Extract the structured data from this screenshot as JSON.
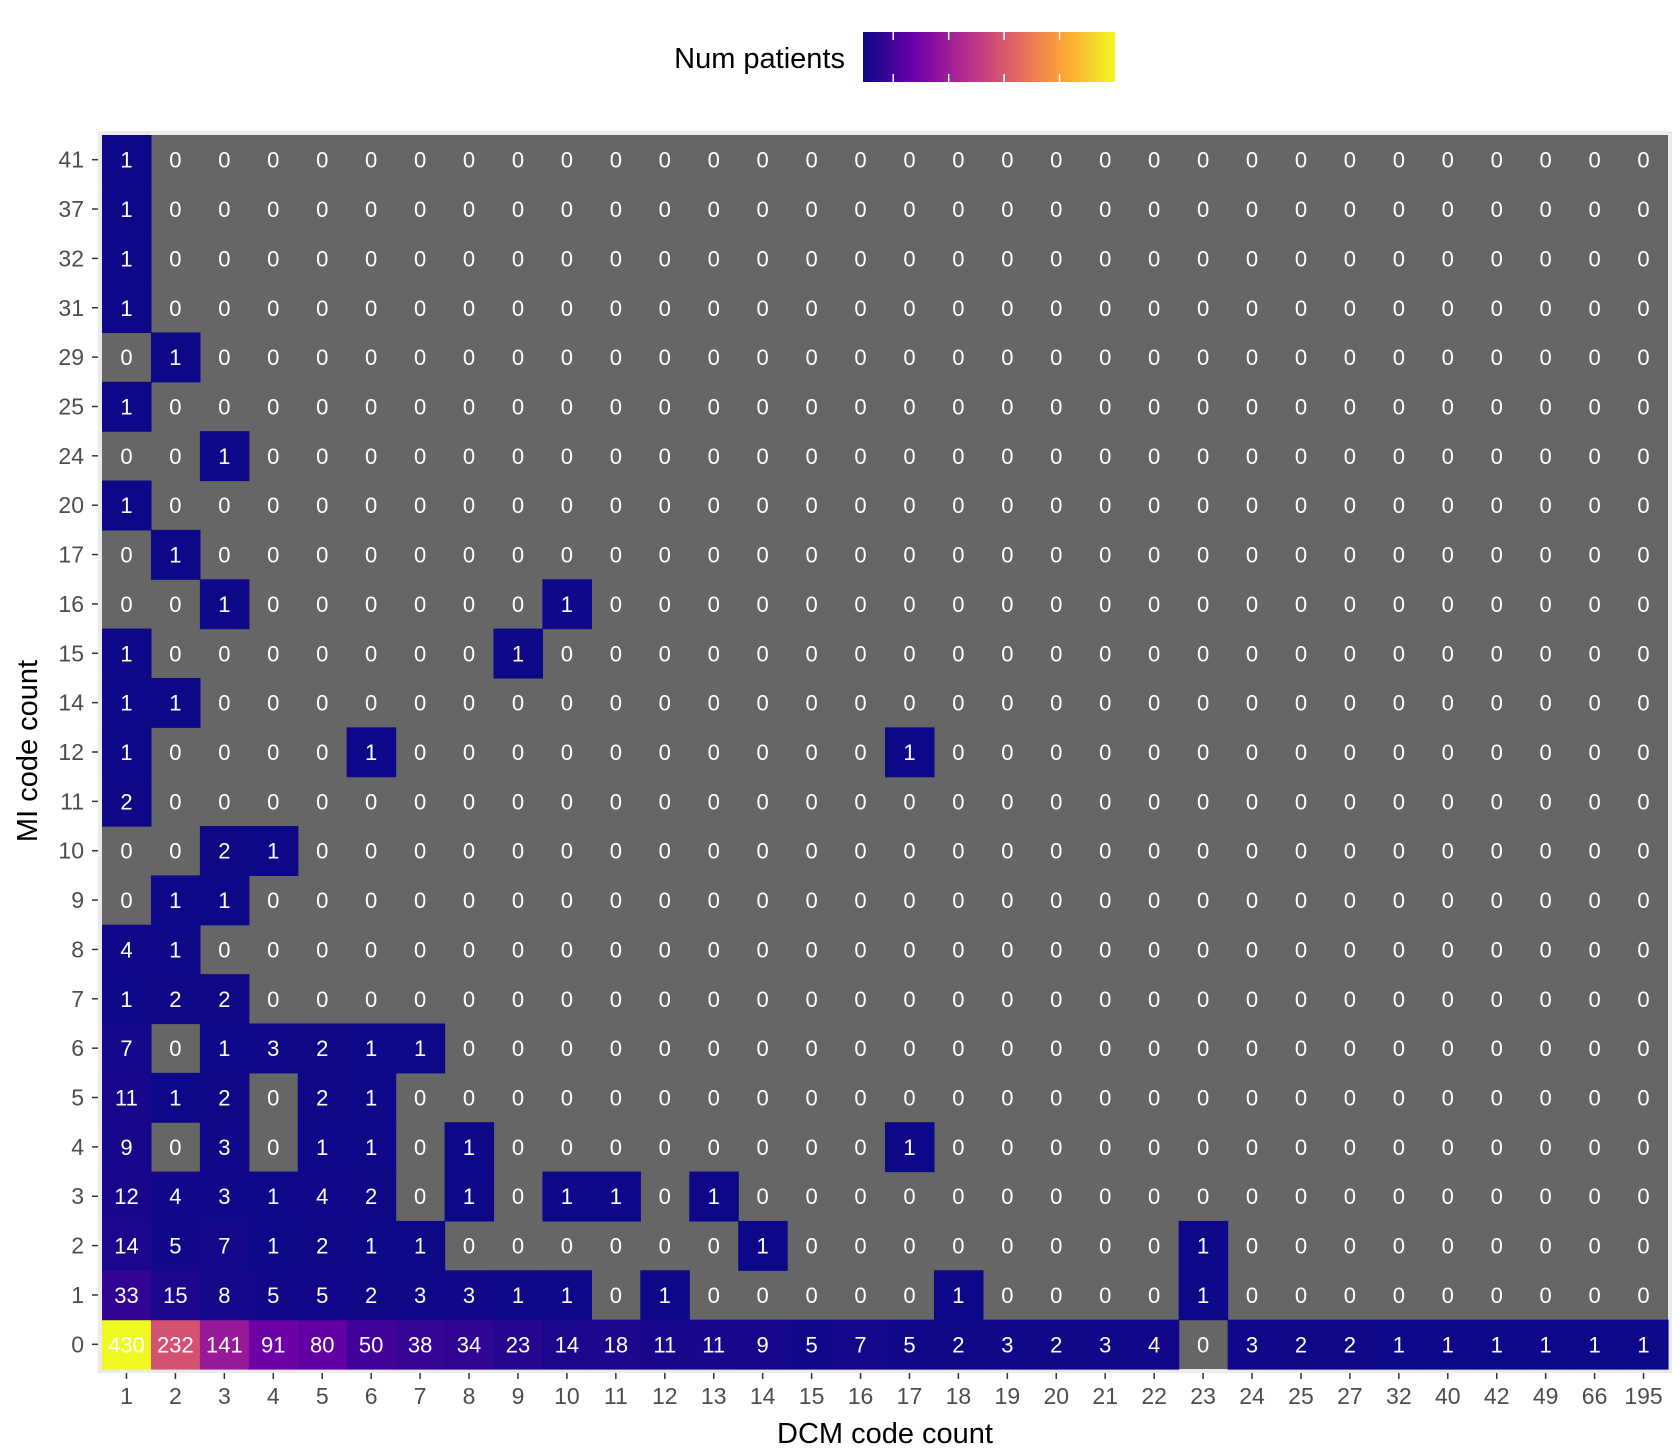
{
  "chart_data": {
    "type": "heatmap",
    "title": "",
    "xlabel": "DCM code count",
    "ylabel": "MI code count",
    "legend": {
      "title": "Num patients",
      "position": "top"
    },
    "colorscale": [
      "#0d0887",
      "#6a00a8",
      "#b12a90",
      "#e16462",
      "#fca636",
      "#f0f921"
    ],
    "zero_color": "#666666",
    "x": [
      "1",
      "2",
      "3",
      "4",
      "5",
      "6",
      "7",
      "8",
      "9",
      "10",
      "11",
      "12",
      "13",
      "14",
      "15",
      "16",
      "17",
      "18",
      "19",
      "20",
      "21",
      "22",
      "23",
      "24",
      "25",
      "27",
      "32",
      "40",
      "42",
      "49",
      "66",
      "195"
    ],
    "y": [
      "0",
      "1",
      "2",
      "3",
      "4",
      "5",
      "6",
      "7",
      "8",
      "9",
      "10",
      "11",
      "12",
      "14",
      "15",
      "16",
      "17",
      "20",
      "24",
      "25",
      "29",
      "31",
      "32",
      "37",
      "41"
    ],
    "values": [
      [
        430,
        232,
        141,
        91,
        80,
        50,
        38,
        34,
        23,
        14,
        18,
        11,
        11,
        9,
        5,
        7,
        5,
        2,
        3,
        2,
        3,
        4,
        0,
        3,
        2,
        2,
        1,
        1,
        1,
        1,
        1,
        1
      ],
      [
        33,
        15,
        8,
        5,
        5,
        2,
        3,
        3,
        1,
        1,
        0,
        1,
        0,
        0,
        0,
        0,
        0,
        1,
        0,
        0,
        0,
        0,
        1,
        0,
        0,
        0,
        0,
        0,
        0,
        0,
        0,
        0
      ],
      [
        14,
        5,
        7,
        1,
        2,
        1,
        1,
        0,
        0,
        0,
        0,
        0,
        0,
        1,
        0,
        0,
        0,
        0,
        0,
        0,
        0,
        0,
        1,
        0,
        0,
        0,
        0,
        0,
        0,
        0,
        0,
        0
      ],
      [
        12,
        4,
        3,
        1,
        4,
        2,
        0,
        1,
        0,
        1,
        1,
        0,
        1,
        0,
        0,
        0,
        0,
        0,
        0,
        0,
        0,
        0,
        0,
        0,
        0,
        0,
        0,
        0,
        0,
        0,
        0,
        0
      ],
      [
        9,
        0,
        3,
        0,
        1,
        1,
        0,
        1,
        0,
        0,
        0,
        0,
        0,
        0,
        0,
        0,
        1,
        0,
        0,
        0,
        0,
        0,
        0,
        0,
        0,
        0,
        0,
        0,
        0,
        0,
        0,
        0
      ],
      [
        11,
        1,
        2,
        0,
        2,
        1,
        0,
        0,
        0,
        0,
        0,
        0,
        0,
        0,
        0,
        0,
        0,
        0,
        0,
        0,
        0,
        0,
        0,
        0,
        0,
        0,
        0,
        0,
        0,
        0,
        0,
        0
      ],
      [
        7,
        0,
        1,
        3,
        2,
        1,
        1,
        0,
        0,
        0,
        0,
        0,
        0,
        0,
        0,
        0,
        0,
        0,
        0,
        0,
        0,
        0,
        0,
        0,
        0,
        0,
        0,
        0,
        0,
        0,
        0,
        0
      ],
      [
        1,
        2,
        2,
        0,
        0,
        0,
        0,
        0,
        0,
        0,
        0,
        0,
        0,
        0,
        0,
        0,
        0,
        0,
        0,
        0,
        0,
        0,
        0,
        0,
        0,
        0,
        0,
        0,
        0,
        0,
        0,
        0
      ],
      [
        4,
        1,
        0,
        0,
        0,
        0,
        0,
        0,
        0,
        0,
        0,
        0,
        0,
        0,
        0,
        0,
        0,
        0,
        0,
        0,
        0,
        0,
        0,
        0,
        0,
        0,
        0,
        0,
        0,
        0,
        0,
        0
      ],
      [
        0,
        1,
        1,
        0,
        0,
        0,
        0,
        0,
        0,
        0,
        0,
        0,
        0,
        0,
        0,
        0,
        0,
        0,
        0,
        0,
        0,
        0,
        0,
        0,
        0,
        0,
        0,
        0,
        0,
        0,
        0,
        0
      ],
      [
        0,
        0,
        2,
        1,
        0,
        0,
        0,
        0,
        0,
        0,
        0,
        0,
        0,
        0,
        0,
        0,
        0,
        0,
        0,
        0,
        0,
        0,
        0,
        0,
        0,
        0,
        0,
        0,
        0,
        0,
        0,
        0
      ],
      [
        2,
        0,
        0,
        0,
        0,
        0,
        0,
        0,
        0,
        0,
        0,
        0,
        0,
        0,
        0,
        0,
        0,
        0,
        0,
        0,
        0,
        0,
        0,
        0,
        0,
        0,
        0,
        0,
        0,
        0,
        0,
        0
      ],
      [
        1,
        0,
        0,
        0,
        0,
        1,
        0,
        0,
        0,
        0,
        0,
        0,
        0,
        0,
        0,
        0,
        1,
        0,
        0,
        0,
        0,
        0,
        0,
        0,
        0,
        0,
        0,
        0,
        0,
        0,
        0,
        0
      ],
      [
        1,
        1,
        0,
        0,
        0,
        0,
        0,
        0,
        0,
        0,
        0,
        0,
        0,
        0,
        0,
        0,
        0,
        0,
        0,
        0,
        0,
        0,
        0,
        0,
        0,
        0,
        0,
        0,
        0,
        0,
        0,
        0
      ],
      [
        1,
        0,
        0,
        0,
        0,
        0,
        0,
        0,
        1,
        0,
        0,
        0,
        0,
        0,
        0,
        0,
        0,
        0,
        0,
        0,
        0,
        0,
        0,
        0,
        0,
        0,
        0,
        0,
        0,
        0,
        0,
        0
      ],
      [
        0,
        0,
        1,
        0,
        0,
        0,
        0,
        0,
        0,
        1,
        0,
        0,
        0,
        0,
        0,
        0,
        0,
        0,
        0,
        0,
        0,
        0,
        0,
        0,
        0,
        0,
        0,
        0,
        0,
        0,
        0,
        0
      ],
      [
        0,
        1,
        0,
        0,
        0,
        0,
        0,
        0,
        0,
        0,
        0,
        0,
        0,
        0,
        0,
        0,
        0,
        0,
        0,
        0,
        0,
        0,
        0,
        0,
        0,
        0,
        0,
        0,
        0,
        0,
        0,
        0
      ],
      [
        1,
        0,
        0,
        0,
        0,
        0,
        0,
        0,
        0,
        0,
        0,
        0,
        0,
        0,
        0,
        0,
        0,
        0,
        0,
        0,
        0,
        0,
        0,
        0,
        0,
        0,
        0,
        0,
        0,
        0,
        0,
        0
      ],
      [
        0,
        0,
        1,
        0,
        0,
        0,
        0,
        0,
        0,
        0,
        0,
        0,
        0,
        0,
        0,
        0,
        0,
        0,
        0,
        0,
        0,
        0,
        0,
        0,
        0,
        0,
        0,
        0,
        0,
        0,
        0,
        0
      ],
      [
        1,
        0,
        0,
        0,
        0,
        0,
        0,
        0,
        0,
        0,
        0,
        0,
        0,
        0,
        0,
        0,
        0,
        0,
        0,
        0,
        0,
        0,
        0,
        0,
        0,
        0,
        0,
        0,
        0,
        0,
        0,
        0
      ],
      [
        0,
        1,
        0,
        0,
        0,
        0,
        0,
        0,
        0,
        0,
        0,
        0,
        0,
        0,
        0,
        0,
        0,
        0,
        0,
        0,
        0,
        0,
        0,
        0,
        0,
        0,
        0,
        0,
        0,
        0,
        0,
        0
      ],
      [
        1,
        0,
        0,
        0,
        0,
        0,
        0,
        0,
        0,
        0,
        0,
        0,
        0,
        0,
        0,
        0,
        0,
        0,
        0,
        0,
        0,
        0,
        0,
        0,
        0,
        0,
        0,
        0,
        0,
        0,
        0,
        0
      ],
      [
        1,
        0,
        0,
        0,
        0,
        0,
        0,
        0,
        0,
        0,
        0,
        0,
        0,
        0,
        0,
        0,
        0,
        0,
        0,
        0,
        0,
        0,
        0,
        0,
        0,
        0,
        0,
        0,
        0,
        0,
        0,
        0
      ],
      [
        1,
        0,
        0,
        0,
        0,
        0,
        0,
        0,
        0,
        0,
        0,
        0,
        0,
        0,
        0,
        0,
        0,
        0,
        0,
        0,
        0,
        0,
        0,
        0,
        0,
        0,
        0,
        0,
        0,
        0,
        0,
        0
      ],
      [
        1,
        0,
        0,
        0,
        0,
        0,
        0,
        0,
        0,
        0,
        0,
        0,
        0,
        0,
        0,
        0,
        0,
        0,
        0,
        0,
        0,
        0,
        0,
        0,
        0,
        0,
        0,
        0,
        0,
        0,
        0,
        0
      ]
    ]
  }
}
